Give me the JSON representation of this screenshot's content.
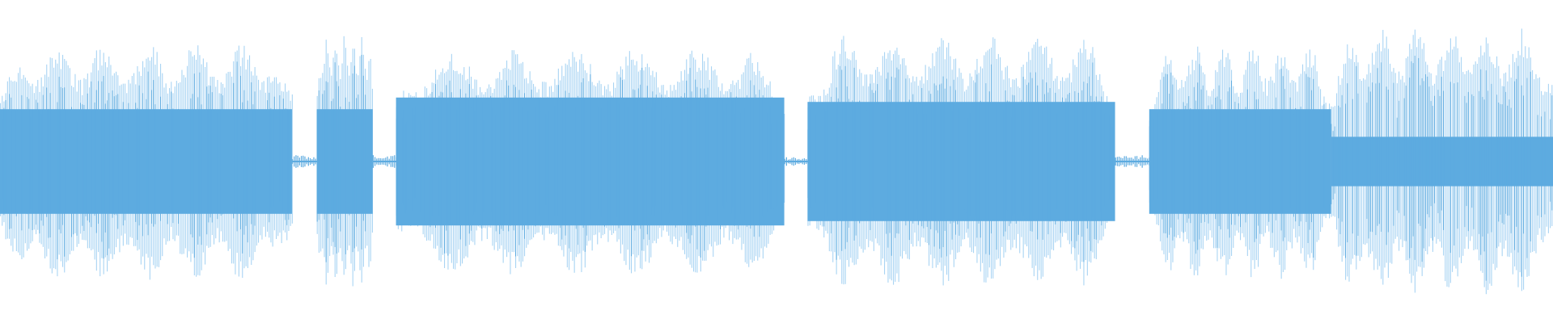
{
  "waveform": {
    "color_dark": "#5dabe0",
    "color_light": "#a9d4f3",
    "background": "#ffffff",
    "amplitude_max": 1.0,
    "segments": [
      {
        "start": 0.0,
        "end": 0.188,
        "core": 0.36,
        "peak": 0.82,
        "variance": "high"
      },
      {
        "start": 0.204,
        "end": 0.24,
        "core": 0.36,
        "peak": 0.87,
        "variance": "medium"
      },
      {
        "start": 0.255,
        "end": 0.505,
        "core": 0.44,
        "peak": 0.79,
        "variance": "high"
      },
      {
        "start": 0.52,
        "end": 0.718,
        "core": 0.41,
        "peak": 0.87,
        "variance": "high"
      },
      {
        "start": 0.74,
        "end": 0.857,
        "core": 0.36,
        "peak": 0.81,
        "variance": "high"
      },
      {
        "start": 0.857,
        "end": 1.0,
        "core": 0.17,
        "peak": 0.92,
        "variance": "high"
      }
    ],
    "gaps": [
      {
        "start": 0.188,
        "end": 0.204,
        "level": 0.03
      },
      {
        "start": 0.24,
        "end": 0.255,
        "level": 0.03
      },
      {
        "start": 0.505,
        "end": 0.52,
        "level": 0.02
      },
      {
        "start": 0.718,
        "end": 0.74,
        "level": 0.03
      }
    ]
  }
}
